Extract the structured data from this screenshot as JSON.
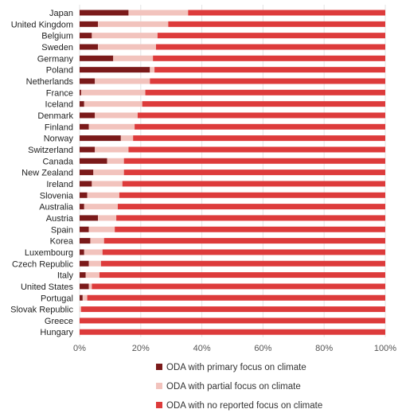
{
  "chart_data": {
    "type": "bar",
    "orientation": "horizontal",
    "stacked": "percent",
    "categories": [
      "Japan",
      "United Kingdom",
      "Belgium",
      "Sweden",
      "Germany",
      "Poland",
      "Netherlands",
      "France",
      "Iceland",
      "Denmark",
      "Finland",
      "Norway",
      "Switzerland",
      "Canada",
      "New Zealand",
      "Ireland",
      "Slovenia",
      "Australia",
      "Austria",
      "Spain",
      "Korea",
      "Luxembourg",
      "Czech Republic",
      "Italy",
      "United States",
      "Portugal",
      "Slovak Republic",
      "Greece",
      "Hungary"
    ],
    "series": [
      {
        "name": "ODA with primary focus on climate",
        "color": "#7b1a1a",
        "values": [
          16,
          6,
          4,
          6,
          11,
          23,
          5,
          0.5,
          1.5,
          5,
          3,
          13.5,
          5,
          9,
          4.5,
          4,
          2.5,
          1.5,
          6,
          3,
          3.5,
          1.5,
          3,
          2,
          3,
          1,
          0,
          0,
          0
        ]
      },
      {
        "name": "ODA with partial focus on climate",
        "color": "#f2c3bd",
        "values": [
          19.5,
          23,
          21.5,
          19,
          13,
          1.5,
          18,
          21,
          19,
          14,
          15,
          4,
          11,
          5.5,
          10,
          10,
          10.5,
          11,
          6,
          8.5,
          4.5,
          6,
          4,
          4.5,
          1,
          1.5,
          0.5,
          0,
          0
        ]
      },
      {
        "name": "ODA with no reported focus on climate",
        "color": "#dd3b3b",
        "values": [
          64.5,
          71,
          74.5,
          75,
          76,
          75.5,
          77,
          78.5,
          79.5,
          81,
          82,
          82.5,
          84,
          85.5,
          85.5,
          86,
          87,
          87.5,
          88,
          88.5,
          92,
          92.5,
          93,
          93.5,
          96,
          97.5,
          99.5,
          100,
          100
        ]
      }
    ],
    "x_ticks": [
      "0%",
      "20%",
      "40%",
      "60%",
      "80%",
      "100%"
    ],
    "xlim": [
      0,
      100
    ],
    "xlabel": "",
    "ylabel": "",
    "title": "",
    "grid": "vertical",
    "legend_placement": "bottom"
  }
}
